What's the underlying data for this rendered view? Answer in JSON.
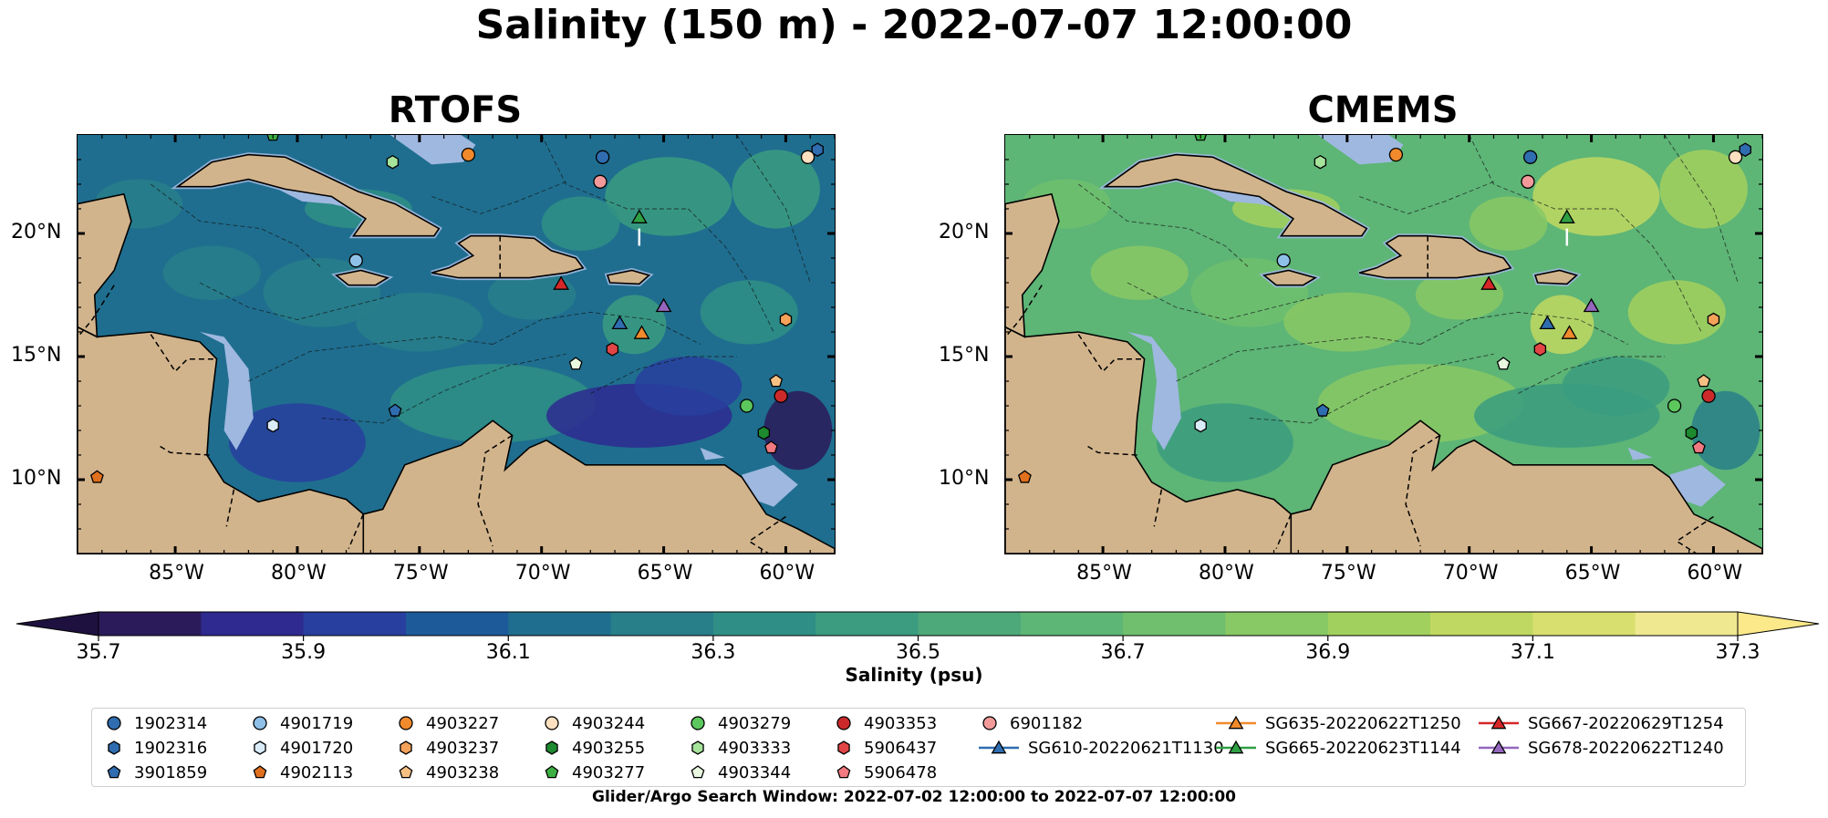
{
  "page": {
    "suptitle": "Salinity (150 m) - 2022-07-07 12:00:00",
    "footer": "Glider/Argo Search Window: 2022-07-02 12:00:00 to 2022-07-07 12:00:00"
  },
  "chart_data": {
    "type": "heatmap",
    "title": "Salinity (150 m) - 2022-07-07 12:00:00",
    "panels": [
      {
        "title": "RTOFS",
        "base_level": 0.25
      },
      {
        "title": "CMEMS",
        "base_level": 0.62
      }
    ],
    "xlim": [
      -89,
      -58
    ],
    "ylim": [
      7,
      24
    ],
    "xticks": [
      {
        "value": -85,
        "label": "85°W"
      },
      {
        "value": -80,
        "label": "80°W"
      },
      {
        "value": -75,
        "label": "75°W"
      },
      {
        "value": -70,
        "label": "70°W"
      },
      {
        "value": -65,
        "label": "65°W"
      },
      {
        "value": -60,
        "label": "60°W"
      }
    ],
    "yticks": [
      {
        "value": 20,
        "label": "20°N"
      },
      {
        "value": 15,
        "label": "15°N"
      },
      {
        "value": 10,
        "label": "10°N"
      }
    ],
    "colorbar": {
      "label": "Salinity (psu)",
      "range": [
        35.7,
        37.3
      ],
      "ticks": [
        "35.7",
        "35.9",
        "36.1",
        "36.3",
        "36.5",
        "36.7",
        "36.9",
        "37.1",
        "37.3"
      ],
      "colors": [
        "#2b1b5a",
        "#2e2a90",
        "#283f9f",
        "#1d5a9a",
        "#1f6e8f",
        "#287f8a",
        "#2f8f86",
        "#3b9c80",
        "#4da87a",
        "#5db576",
        "#6fbf6e",
        "#88c865",
        "#a2d05e",
        "#bfd861",
        "#d8df6f",
        "#efe891"
      ]
    },
    "markers": [
      {
        "id": "1902314",
        "lon": -67.5,
        "lat": 23.1,
        "shape": "circle",
        "color": "#2f6db0"
      },
      {
        "id": "1902316",
        "lon": -58.7,
        "lat": 23.4,
        "shape": "hexagon",
        "color": "#2f6db0"
      },
      {
        "id": "3901859",
        "lon": -76.0,
        "lat": 12.8,
        "shape": "pentagon",
        "color": "#2f6db0"
      },
      {
        "id": "4901719",
        "lon": -77.6,
        "lat": 18.9,
        "shape": "circle",
        "color": "#8fc0e8"
      },
      {
        "id": "4901720",
        "lon": -81.0,
        "lat": 12.2,
        "shape": "hexagon",
        "color": "#d9ecf8"
      },
      {
        "id": "4902113",
        "lon": -88.2,
        "lat": 10.1,
        "shape": "pentagon",
        "color": "#e0701d"
      },
      {
        "id": "4903227",
        "lon": -73.0,
        "lat": 23.2,
        "shape": "circle",
        "color": "#f08a2c"
      },
      {
        "id": "4903237",
        "lon": -60.0,
        "lat": 16.5,
        "shape": "hexagon",
        "color": "#f4a25a"
      },
      {
        "id": "4903238",
        "lon": -60.4,
        "lat": 14.0,
        "shape": "pentagon",
        "color": "#f7c083"
      },
      {
        "id": "4903244",
        "lon": -59.1,
        "lat": 23.1,
        "shape": "circle",
        "color": "#fde0c0"
      },
      {
        "id": "4903255",
        "lon": -60.9,
        "lat": 11.9,
        "shape": "hexagon",
        "color": "#1d8a2f"
      },
      {
        "id": "4903277",
        "lon": -81.0,
        "lat": 24.0,
        "shape": "pentagon",
        "color": "#3cb043"
      },
      {
        "id": "4903279",
        "lon": -61.6,
        "lat": 13.0,
        "shape": "circle",
        "color": "#5cc75c"
      },
      {
        "id": "4903333",
        "lon": -76.1,
        "lat": 22.9,
        "shape": "hexagon",
        "color": "#a6e39b"
      },
      {
        "id": "4903344",
        "lon": -68.6,
        "lat": 14.7,
        "shape": "pentagon",
        "color": "#e9f9e0"
      },
      {
        "id": "4903353",
        "lon": -60.2,
        "lat": 13.4,
        "shape": "circle",
        "color": "#cc2a2a"
      },
      {
        "id": "5906437",
        "lon": -67.1,
        "lat": 15.3,
        "shape": "hexagon",
        "color": "#e24545"
      },
      {
        "id": "5906478",
        "lon": -60.6,
        "lat": 11.3,
        "shape": "pentagon",
        "color": "#f07a80"
      },
      {
        "id": "6901182",
        "lon": -67.6,
        "lat": 22.1,
        "shape": "circle",
        "color": "#f29a9a"
      },
      {
        "id": "SG610-20220621T1130",
        "lon": -66.8,
        "lat": 16.3,
        "shape": "triangle",
        "color": "#2f6db0",
        "line": "#2f6db0"
      },
      {
        "id": "SG635-20220622T1250",
        "lon": -65.9,
        "lat": 15.9,
        "shape": "triangle",
        "color": "#f08a2c",
        "line": "#f08a2c"
      },
      {
        "id": "SG665-20220623T1144",
        "lon": -66.0,
        "lat": 20.6,
        "shape": "triangle",
        "color": "#2ea043",
        "line": "#2ea043"
      },
      {
        "id": "SG667-20220629T1254",
        "lon": -69.2,
        "lat": 17.9,
        "shape": "triangle",
        "color": "#d62728",
        "line": "#d62728"
      },
      {
        "id": "SG678-20220622T1240",
        "lon": -65.0,
        "lat": 17.0,
        "shape": "triangle",
        "color": "#9467bd",
        "line": "#9467bd"
      }
    ]
  },
  "legend": {
    "items": [
      {
        "id": "1902314",
        "shape": "circle",
        "color": "#2f6db0"
      },
      {
        "id": "1902316",
        "shape": "hexagon",
        "color": "#2f6db0"
      },
      {
        "id": "3901859",
        "shape": "pentagon",
        "color": "#2f6db0"
      },
      {
        "id": "4901719",
        "shape": "circle",
        "color": "#8fc0e8"
      },
      {
        "id": "4901720",
        "shape": "hexagon",
        "color": "#d9ecf8"
      },
      {
        "id": "4902113",
        "shape": "pentagon",
        "color": "#e0701d"
      },
      {
        "id": "4903227",
        "shape": "circle",
        "color": "#f08a2c"
      },
      {
        "id": "4903237",
        "shape": "hexagon",
        "color": "#f4a25a"
      },
      {
        "id": "4903238",
        "shape": "pentagon",
        "color": "#f7c083"
      },
      {
        "id": "4903244",
        "shape": "circle",
        "color": "#fde0c0"
      },
      {
        "id": "4903255",
        "shape": "hexagon",
        "color": "#1d8a2f"
      },
      {
        "id": "4903277",
        "shape": "pentagon",
        "color": "#3cb043"
      },
      {
        "id": "4903279",
        "shape": "circle",
        "color": "#5cc75c"
      },
      {
        "id": "4903333",
        "shape": "hexagon",
        "color": "#a6e39b"
      },
      {
        "id": "4903344",
        "shape": "pentagon",
        "color": "#e9f9e0"
      },
      {
        "id": "4903353",
        "shape": "circle",
        "color": "#cc2a2a"
      },
      {
        "id": "5906437",
        "shape": "hexagon",
        "color": "#e24545"
      },
      {
        "id": "5906478",
        "shape": "pentagon",
        "color": "#f07a80"
      },
      {
        "id": "6901182",
        "shape": "circle",
        "color": "#f29a9a"
      },
      {
        "id": "SG610-20220621T1130",
        "shape": "triangle",
        "color": "#2f6db0",
        "line": "#2f6db0"
      },
      {
        "id": "SG635-20220622T1250",
        "shape": "triangle",
        "color": "#f08a2c",
        "line": "#f08a2c"
      },
      {
        "id": "SG665-20220623T1144",
        "shape": "triangle",
        "color": "#2ea043",
        "line": "#2ea043"
      },
      {
        "id": "SG667-20220629T1254",
        "shape": "triangle",
        "color": "#d62728",
        "line": "#d62728"
      },
      {
        "id": "SG678-20220622T1240",
        "shape": "triangle",
        "color": "#9467bd",
        "line": "#9467bd"
      }
    ]
  }
}
